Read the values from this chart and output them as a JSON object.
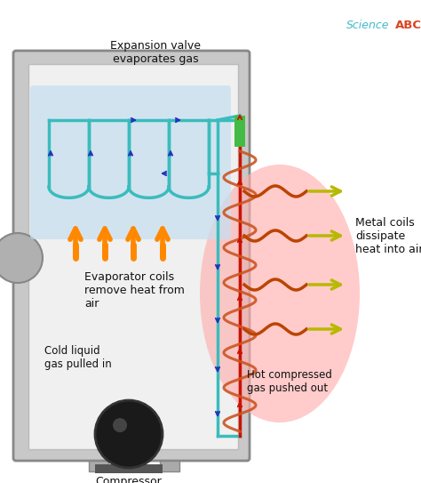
{
  "bg_color": "#ffffff",
  "fridge_body_color": "#c8c8c8",
  "fridge_inner_color": "#e0e0e0",
  "fridge_edge_color": "#888888",
  "evap_bg_color": "#c8dff0",
  "hot_bg_color": "#ffb0b0",
  "cyan_color": "#3abcbc",
  "red_color": "#cc1100",
  "green_color": "#44bb44",
  "orange_color": "#ff8800",
  "yellow_color": "#b8b800",
  "blue_arrow_color": "#2233bb",
  "dark_orange_color": "#bb4400",
  "compressor_color": "#1a1a1a",
  "text_color": "#111111",
  "science_color": "#44bbcc",
  "abc_color": "#dd4422",
  "expansion_valve_text": "Expansion valve\nevaporates gas",
  "evap_coils_text": "Evaporator coils\nremove heat from\nair",
  "cold_liquid_text": "Cold liquid\ngas pulled in",
  "hot_gas_text": "Hot compressed\ngas pushed out",
  "metal_coils_text": "Metal coils\ndissipate\nheat into air",
  "compressor_text": "Compressor"
}
